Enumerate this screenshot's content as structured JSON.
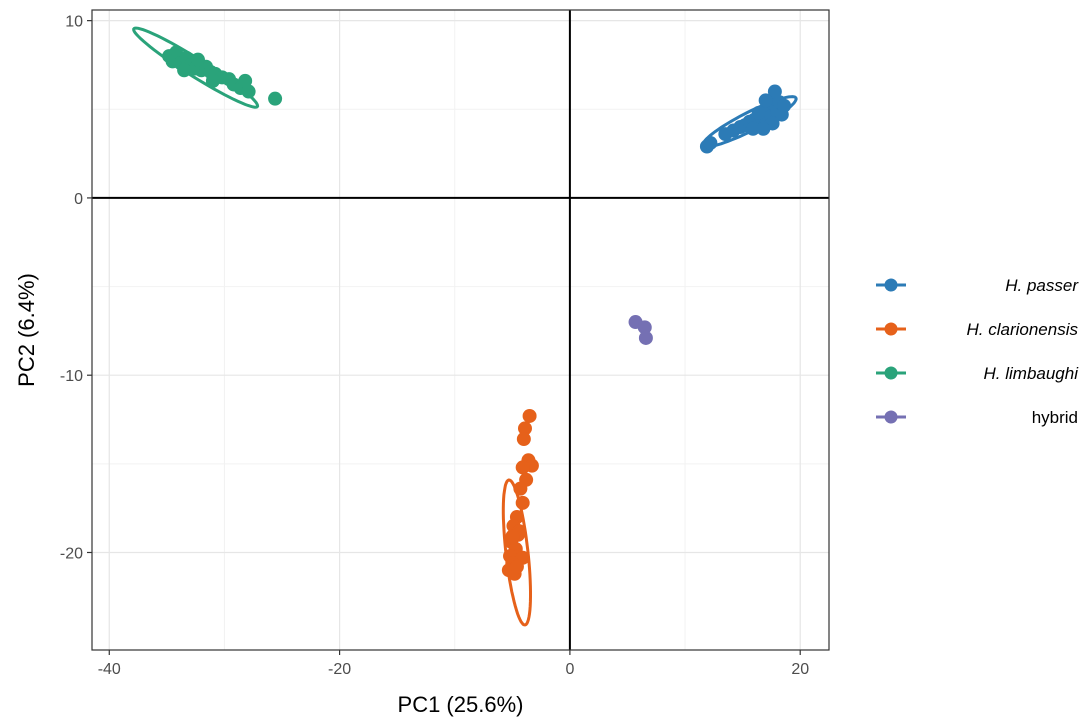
{
  "chart_data": {
    "type": "scatter",
    "xlabel": "PC1 (25.6%)",
    "ylabel": "PC2 (6.4%)",
    "xlim": [
      -41.5,
      22.5
    ],
    "ylim": [
      -25.5,
      10.6
    ],
    "x_ticks": [
      -40,
      -20,
      0,
      20
    ],
    "y_ticks": [
      -20,
      -10,
      0,
      10
    ],
    "x_tick_labels": [
      "-40",
      "-20",
      "0",
      "20"
    ],
    "y_tick_labels": [
      "-20",
      "-10",
      "0",
      "10"
    ],
    "grid": true,
    "reference_lines": {
      "x": 0,
      "y": 0
    },
    "legend_position": "right",
    "series": [
      {
        "name": "H. passer",
        "italic": true,
        "color": "#2C7BB6",
        "points": [
          [
            11.9,
            2.9
          ],
          [
            12.2,
            3.1
          ],
          [
            13.5,
            3.6
          ],
          [
            14.2,
            3.8
          ],
          [
            14.8,
            4.0
          ],
          [
            15.2,
            4.1
          ],
          [
            15.6,
            4.3
          ],
          [
            16.0,
            4.4
          ],
          [
            16.3,
            4.1
          ],
          [
            16.6,
            4.6
          ],
          [
            16.9,
            4.8
          ],
          [
            17.1,
            4.3
          ],
          [
            17.3,
            5.0
          ],
          [
            17.5,
            4.6
          ],
          [
            17.7,
            5.3
          ],
          [
            17.8,
            6.0
          ],
          [
            18.0,
            4.9
          ],
          [
            18.2,
            5.4
          ],
          [
            18.4,
            4.7
          ],
          [
            18.6,
            5.2
          ],
          [
            16.4,
            4.8
          ],
          [
            17.0,
            5.5
          ],
          [
            17.6,
            4.2
          ],
          [
            15.9,
            3.9
          ],
          [
            16.8,
            3.9
          ]
        ],
        "ellipse": {
          "cx": 15.6,
          "cy": 4.3,
          "rx": 4.25,
          "ry": 0.55,
          "angle_deg": 18
        }
      },
      {
        "name": "H. clarionensis",
        "italic": true,
        "color": "#E6611A",
        "points": [
          [
            -3.5,
            -12.3
          ],
          [
            -3.9,
            -13.0
          ],
          [
            -4.0,
            -13.6
          ],
          [
            -3.6,
            -14.8
          ],
          [
            -3.3,
            -15.1
          ],
          [
            -4.1,
            -15.2
          ],
          [
            -3.8,
            -15.9
          ],
          [
            -4.3,
            -16.4
          ],
          [
            -4.1,
            -17.2
          ],
          [
            -4.6,
            -18.0
          ],
          [
            -4.9,
            -18.5
          ],
          [
            -4.4,
            -18.8
          ],
          [
            -5.1,
            -19.4
          ],
          [
            -4.7,
            -19.8
          ],
          [
            -5.2,
            -20.2
          ],
          [
            -4.1,
            -20.3
          ],
          [
            -5.0,
            -20.6
          ],
          [
            -5.3,
            -21.0
          ],
          [
            -4.8,
            -21.2
          ],
          [
            -4.5,
            -19.0
          ],
          [
            -5.0,
            -19.1
          ],
          [
            -4.6,
            -20.8
          ]
        ],
        "ellipse": {
          "cx": -4.6,
          "cy": -20.0,
          "rx": 4.15,
          "ry": 0.95,
          "angle_deg": -80
        }
      },
      {
        "name": "H. limbaughi",
        "italic": true,
        "color": "#2AA37A",
        "points": [
          [
            -34.8,
            8.0
          ],
          [
            -34.2,
            8.2
          ],
          [
            -34.5,
            7.7
          ],
          [
            -33.8,
            7.6
          ],
          [
            -33.3,
            7.9
          ],
          [
            -32.9,
            7.5
          ],
          [
            -32.5,
            7.3
          ],
          [
            -32.0,
            7.2
          ],
          [
            -31.6,
            7.4
          ],
          [
            -31.2,
            7.1
          ],
          [
            -30.8,
            7.0
          ],
          [
            -30.2,
            6.8
          ],
          [
            -29.6,
            6.7
          ],
          [
            -29.2,
            6.4
          ],
          [
            -28.6,
            6.2
          ],
          [
            -28.2,
            6.6
          ],
          [
            -27.9,
            6.0
          ],
          [
            -25.6,
            5.6
          ],
          [
            -33.5,
            7.2
          ],
          [
            -32.3,
            7.8
          ],
          [
            -31.0,
            6.6
          ]
        ],
        "ellipse": {
          "cx": -32.5,
          "cy": 7.35,
          "rx": 5.8,
          "ry": 0.55,
          "angle_deg": -22
        }
      },
      {
        "name": "hybrid",
        "italic": false,
        "color": "#7570B3",
        "points": [
          [
            5.7,
            -7.0
          ],
          [
            6.5,
            -7.3
          ],
          [
            6.6,
            -7.9
          ]
        ],
        "ellipse": null
      }
    ]
  }
}
